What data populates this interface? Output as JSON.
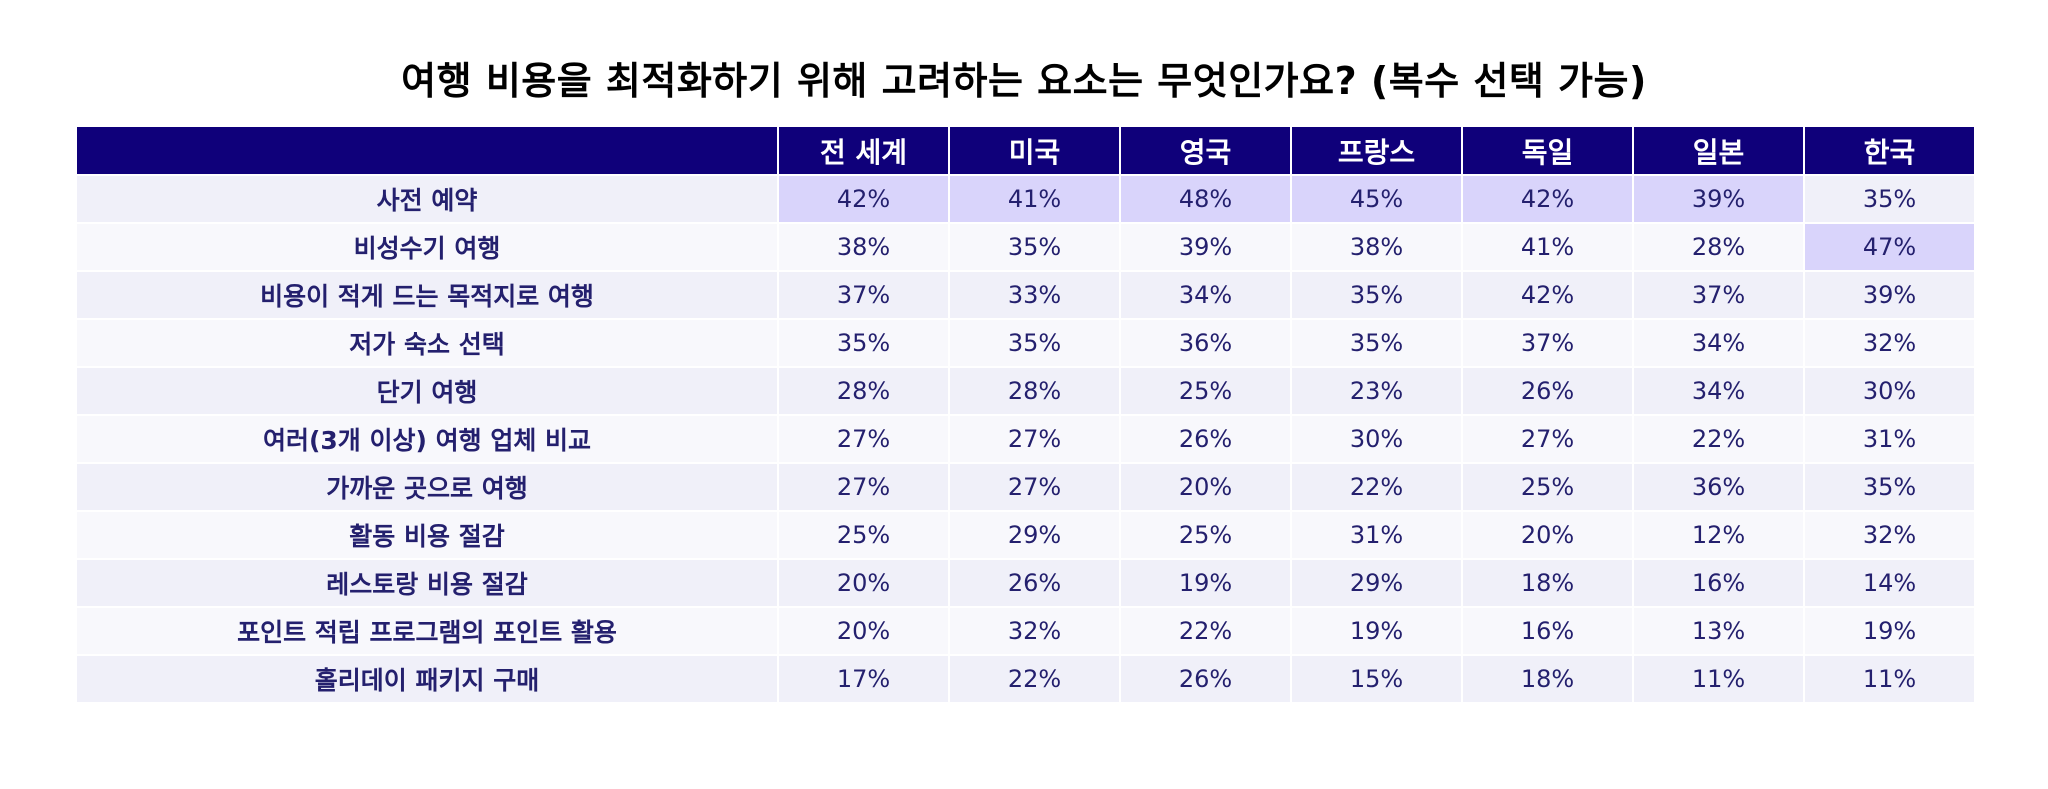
{
  "chart_data": {
    "type": "table",
    "title": "여행 비용을 최적화하기 위해 고려하는 요소는 무엇인가요? (복수 선택 가능)",
    "header_blank": "",
    "columns": [
      "전 세계",
      "미국",
      "영국",
      "프랑스",
      "독일",
      "일본",
      "한국"
    ],
    "rows": [
      {
        "label": "사전 예약",
        "values": [
          "42%",
          "41%",
          "48%",
          "45%",
          "42%",
          "39%",
          "35%"
        ],
        "highlight": [
          true,
          true,
          true,
          true,
          true,
          true,
          false
        ]
      },
      {
        "label": "비성수기 여행",
        "values": [
          "38%",
          "35%",
          "39%",
          "38%",
          "41%",
          "28%",
          "47%"
        ],
        "highlight": [
          false,
          false,
          false,
          false,
          false,
          false,
          true
        ]
      },
      {
        "label": "비용이 적게 드는 목적지로 여행",
        "values": [
          "37%",
          "33%",
          "34%",
          "35%",
          "42%",
          "37%",
          "39%"
        ],
        "highlight": [
          false,
          false,
          false,
          false,
          false,
          false,
          false
        ]
      },
      {
        "label": "저가 숙소 선택",
        "values": [
          "35%",
          "35%",
          "36%",
          "35%",
          "37%",
          "34%",
          "32%"
        ],
        "highlight": [
          false,
          false,
          false,
          false,
          false,
          false,
          false
        ]
      },
      {
        "label": "단기 여행",
        "values": [
          "28%",
          "28%",
          "25%",
          "23%",
          "26%",
          "34%",
          "30%"
        ],
        "highlight": [
          false,
          false,
          false,
          false,
          false,
          false,
          false
        ]
      },
      {
        "label": "여러(3개 이상) 여행 업체 비교",
        "values": [
          "27%",
          "27%",
          "26%",
          "30%",
          "27%",
          "22%",
          "31%"
        ],
        "highlight": [
          false,
          false,
          false,
          false,
          false,
          false,
          false
        ]
      },
      {
        "label": "가까운 곳으로 여행",
        "values": [
          "27%",
          "27%",
          "20%",
          "22%",
          "25%",
          "36%",
          "35%"
        ],
        "highlight": [
          false,
          false,
          false,
          false,
          false,
          false,
          false
        ]
      },
      {
        "label": "활동 비용 절감",
        "values": [
          "25%",
          "29%",
          "25%",
          "31%",
          "20%",
          "12%",
          "32%"
        ],
        "highlight": [
          false,
          false,
          false,
          false,
          false,
          false,
          false
        ]
      },
      {
        "label": "레스토랑 비용 절감",
        "values": [
          "20%",
          "26%",
          "19%",
          "29%",
          "18%",
          "16%",
          "14%"
        ],
        "highlight": [
          false,
          false,
          false,
          false,
          false,
          false,
          false
        ]
      },
      {
        "label": "포인트 적립 프로그램의 포인트 활용",
        "values": [
          "20%",
          "32%",
          "22%",
          "19%",
          "16%",
          "13%",
          "19%"
        ],
        "highlight": [
          false,
          false,
          false,
          false,
          false,
          false,
          false
        ]
      },
      {
        "label": "홀리데이 패키지 구매",
        "values": [
          "17%",
          "22%",
          "26%",
          "15%",
          "18%",
          "11%",
          "11%"
        ],
        "highlight": [
          false,
          false,
          false,
          false,
          false,
          false,
          false
        ]
      }
    ]
  }
}
